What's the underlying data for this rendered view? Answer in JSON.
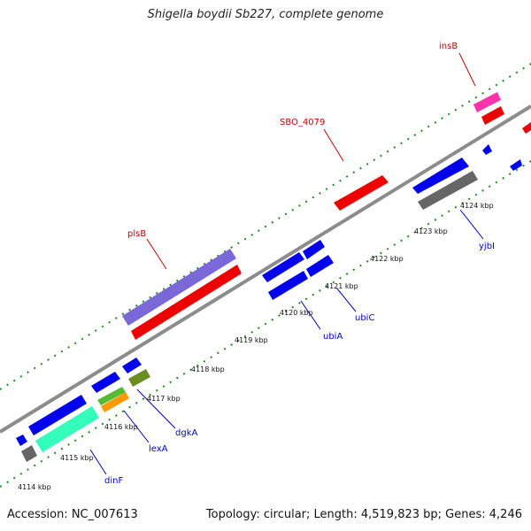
{
  "title": "Shigella boydii Sb227, complete genome",
  "footer": {
    "accession": "Accession: NC_007613",
    "summary": "Topology: circular; Length: 4,519,823 bp; Genes: 4,246"
  },
  "colors": {
    "backbone": "#8c8c8c",
    "tick": "#1f8a1f",
    "label_forward": "#cc0000",
    "label_reverse": "#0000cc"
  },
  "kbp_ticks": [
    "4114 kbp",
    "4115 kbp",
    "4116 kbp",
    "4117 kbp",
    "4118 kbp",
    "4119 kbp",
    "4120 kbp",
    "4121 kbp",
    "4122 kbp",
    "4123 kbp",
    "4124 kbp"
  ],
  "gene_labels": {
    "insB": "insB",
    "SBO_4079": "SBO_4079",
    "plsB": "plsB",
    "ubiC": "ubiC",
    "ubiA": "ubiA",
    "yjbI": "yjbI",
    "dgkA": "dgkA",
    "lexA": "lexA",
    "dinF": "dinF"
  },
  "feature_colors": {
    "red": "#ee0000",
    "pink": "#ff33aa",
    "blue": "#0000ee",
    "gray": "#666666",
    "purple": "#7b68d8",
    "teal": "#33ffbb",
    "green": "#55bb33",
    "orange": "#ff9900",
    "olive": "#6b8e23"
  }
}
